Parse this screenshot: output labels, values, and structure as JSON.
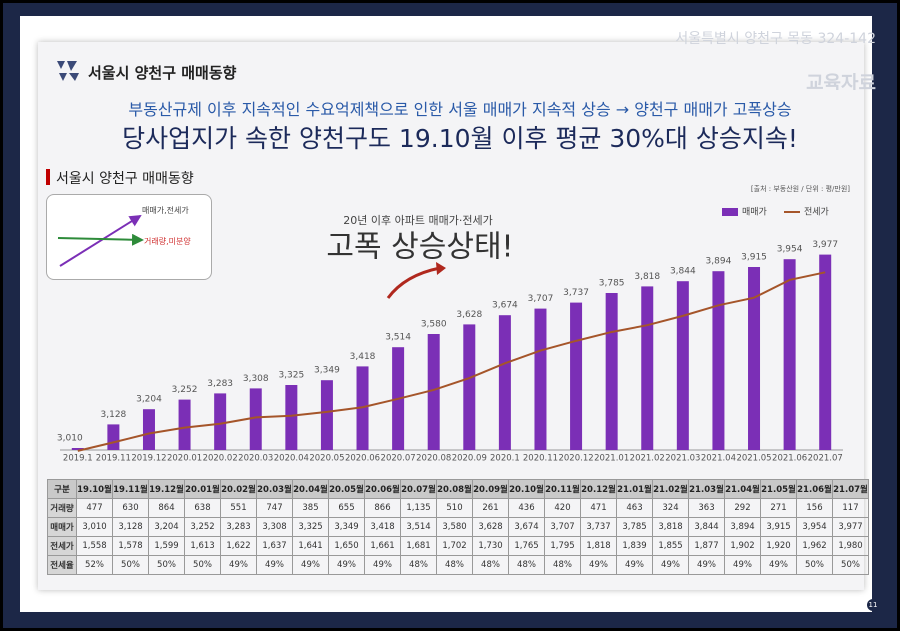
{
  "header": {
    "address": "서울특별시 양천구 목동 324-142",
    "label": "교육자료",
    "logo_text": "서울시 양천구 매매동향"
  },
  "headline": {
    "line1": "부동산규제 이후 지속적인 수요억제책으로 인한 서울 매매가 지속적 상승 → 양천구 매매가 고폭상승",
    "line2": "당사업지가 속한 양천구도 19.10월 이후 평균 30%대 상승지속!"
  },
  "section_title": "서울시 양천구 매매동향",
  "inset": {
    "up_label": "매매가,전세가",
    "flat_label": "거래량,미분양"
  },
  "chart_data": {
    "type": "bar",
    "source": "[출처 : 부동산원 / 단위 : 평/만원]",
    "annotations": [
      "20년 이후 아파트 매매가·전세가",
      "고폭 상승상태!"
    ],
    "categories": [
      "2019.1",
      "2019.11",
      "2019.12",
      "2020.01",
      "2020.02",
      "2020.03",
      "2020.04",
      "2020.05",
      "2020.06",
      "2020.07",
      "2020.08",
      "2020.09",
      "2020.1",
      "2020.11",
      "2020.12",
      "2021.01",
      "2021.02",
      "2021.03",
      "2021.04",
      "2021.05",
      "2021.06",
      "2021.07"
    ],
    "ylim": [
      3000,
      4100
    ],
    "y2lim": [
      1560,
      2080
    ],
    "legend": "top-right",
    "series": [
      {
        "name": "매매가",
        "type": "bar",
        "color": "#7b2fb6",
        "values": [
          3010,
          3128,
          3204,
          3252,
          3283,
          3308,
          3325,
          3349,
          3418,
          3514,
          3580,
          3628,
          3674,
          3707,
          3737,
          3785,
          3818,
          3844,
          3894,
          3915,
          3954,
          3977
        ],
        "value_labels": [
          "3,010",
          "3,128",
          "3,204",
          "3,252",
          "3,283",
          "3,308",
          "3,325",
          "3,349",
          "3,418",
          "3,514",
          "3,580",
          "3,628",
          "3,674",
          "3,707",
          "3,737",
          "3,785",
          "3,818",
          "3,844",
          "3,894",
          "3,915",
          "3,954",
          "3,977"
        ]
      },
      {
        "name": "전세가",
        "type": "line",
        "axis": "y2",
        "color": "#a5552a",
        "values": [
          1558,
          1578,
          1599,
          1613,
          1622,
          1637,
          1641,
          1650,
          1661,
          1681,
          1702,
          1730,
          1765,
          1795,
          1818,
          1839,
          1855,
          1877,
          1902,
          1920,
          1962,
          1980
        ]
      }
    ]
  },
  "table": {
    "header": [
      "구분",
      "19.10월",
      "19.11월",
      "19.12월",
      "20.01월",
      "20.02월",
      "20.03월",
      "20.04월",
      "20.05월",
      "20.06월",
      "20.07월",
      "20.08월",
      "20.09월",
      "20.10월",
      "20.11월",
      "20.12월",
      "21.01월",
      "21.02월",
      "21.03월",
      "21.04월",
      "21.05월",
      "21.06월",
      "21.07월"
    ],
    "rows": [
      [
        "거래량",
        "477",
        "630",
        "864",
        "638",
        "551",
        "747",
        "385",
        "655",
        "866",
        "1,135",
        "510",
        "261",
        "436",
        "420",
        "471",
        "463",
        "324",
        "363",
        "292",
        "271",
        "156",
        "117"
      ],
      [
        "매매가",
        "3,010",
        "3,128",
        "3,204",
        "3,252",
        "3,283",
        "3,308",
        "3,325",
        "3,349",
        "3,418",
        "3,514",
        "3,580",
        "3,628",
        "3,674",
        "3,707",
        "3,737",
        "3,785",
        "3,818",
        "3,844",
        "3,894",
        "3,915",
        "3,954",
        "3,977"
      ],
      [
        "전세가",
        "1,558",
        "1,578",
        "1,599",
        "1,613",
        "1,622",
        "1,637",
        "1,641",
        "1,650",
        "1,661",
        "1,681",
        "1,702",
        "1,730",
        "1,765",
        "1,795",
        "1,818",
        "1,839",
        "1,855",
        "1,877",
        "1,902",
        "1,920",
        "1,962",
        "1,980"
      ],
      [
        "전세율",
        "52%",
        "50%",
        "50%",
        "50%",
        "49%",
        "49%",
        "49%",
        "49%",
        "49%",
        "48%",
        "48%",
        "48%",
        "48%",
        "48%",
        "49%",
        "49%",
        "49%",
        "49%",
        "49%",
        "49%",
        "50%",
        "50%"
      ]
    ]
  },
  "page_number": "11"
}
